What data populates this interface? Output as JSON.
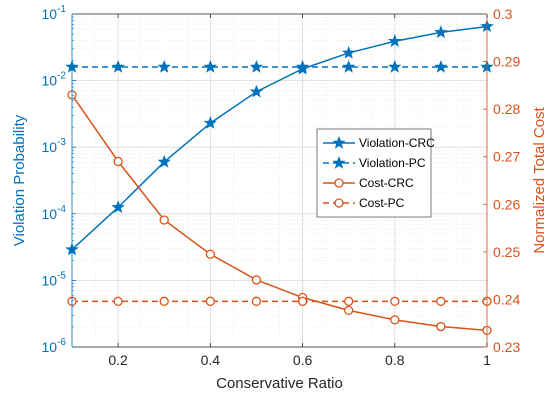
{
  "chart_data": {
    "type": "line",
    "x": [
      0.1,
      0.2,
      0.3,
      0.4,
      0.5,
      0.6,
      0.7,
      0.8,
      0.9,
      1.0
    ],
    "xlabel": "Conservative Ratio",
    "xlim": [
      0.1,
      1.0
    ],
    "xticks": [
      "0.2",
      "0.4",
      "0.6",
      "0.8",
      "1"
    ],
    "xtick_values": [
      0.2,
      0.4,
      0.6,
      0.8,
      1.0
    ],
    "left_axis": {
      "label": "Violation Probability",
      "scale": "log",
      "ylim": [
        1e-06,
        0.1
      ],
      "color": "#0072BD",
      "tick_exponents": [
        -6,
        -5,
        -4,
        -3,
        -2,
        -1
      ]
    },
    "right_axis": {
      "label": "Normalized Total Cost",
      "scale": "linear",
      "ylim": [
        0.23,
        0.3
      ],
      "color": "#D95319",
      "ticks": [
        "0.23",
        "0.24",
        "0.25",
        "0.26",
        "0.27",
        "0.28",
        "0.29",
        "0.3"
      ],
      "tick_values": [
        0.23,
        0.24,
        0.25,
        0.26,
        0.27,
        0.28,
        0.29,
        0.3
      ]
    },
    "series": [
      {
        "name": "Violation-CRC",
        "axis": "left",
        "color": "#0072BD",
        "marker": "star",
        "dash": "solid",
        "values": [
          2.9e-05,
          0.000125,
          0.0006,
          0.0023,
          0.0068,
          0.015,
          0.026,
          0.039,
          0.053,
          0.065
        ]
      },
      {
        "name": "Violation-PC",
        "axis": "left",
        "color": "#0072BD",
        "marker": "star",
        "dash": "dashed",
        "values": [
          0.016,
          0.016,
          0.016,
          0.016,
          0.016,
          0.016,
          0.016,
          0.016,
          0.016,
          0.016
        ]
      },
      {
        "name": "Cost-CRC",
        "axis": "right",
        "color": "#D95319",
        "marker": "circle",
        "dash": "solid",
        "values": [
          0.283,
          0.269,
          0.2567,
          0.2495,
          0.2441,
          0.2404,
          0.2377,
          0.2357,
          0.2343,
          0.2335
        ]
      },
      {
        "name": "Cost-PC",
        "axis": "right",
        "color": "#D95319",
        "marker": "circle",
        "dash": "dashed",
        "values": [
          0.2396,
          0.2396,
          0.2396,
          0.2396,
          0.2396,
          0.2396,
          0.2396,
          0.2396,
          0.2396,
          0.2396
        ]
      }
    ],
    "grid": true,
    "legend_position": "right"
  }
}
